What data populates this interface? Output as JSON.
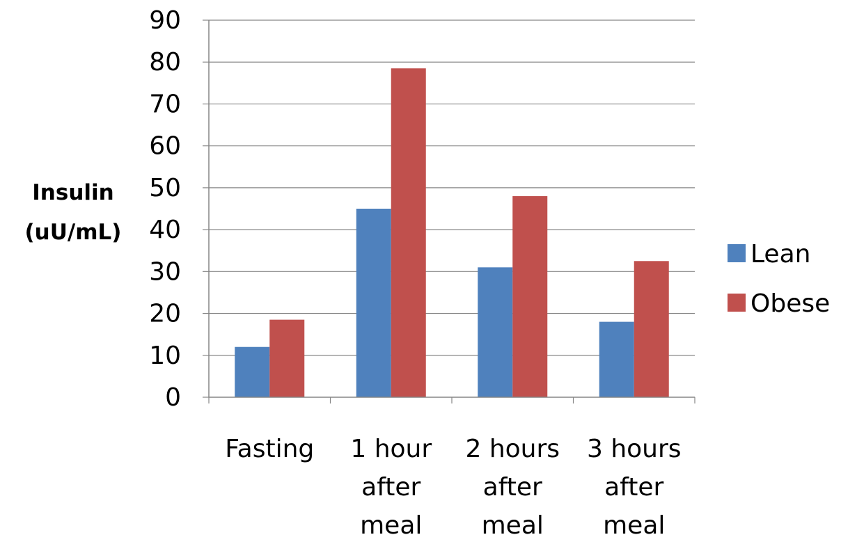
{
  "chart_data": {
    "type": "bar",
    "title": "",
    "xlabel": "",
    "ylabel_lines": [
      "Insulin",
      "(uU/mL)"
    ],
    "ylim": [
      0,
      90
    ],
    "yticks": [
      0,
      10,
      20,
      30,
      40,
      50,
      60,
      70,
      80,
      90
    ],
    "grid": true,
    "legend_position": "right",
    "categories": [
      [
        "Fasting"
      ],
      [
        "1 hour",
        "after",
        "meal"
      ],
      [
        "2 hours",
        "after",
        "meal"
      ],
      [
        "3 hours",
        "after",
        "meal"
      ]
    ],
    "series": [
      {
        "name": "Lean",
        "color": "#4F81BD",
        "values": [
          12,
          45,
          31,
          18
        ]
      },
      {
        "name": "Obese",
        "color": "#C0504D",
        "values": [
          18.5,
          78.5,
          48,
          32.5
        ]
      }
    ]
  }
}
